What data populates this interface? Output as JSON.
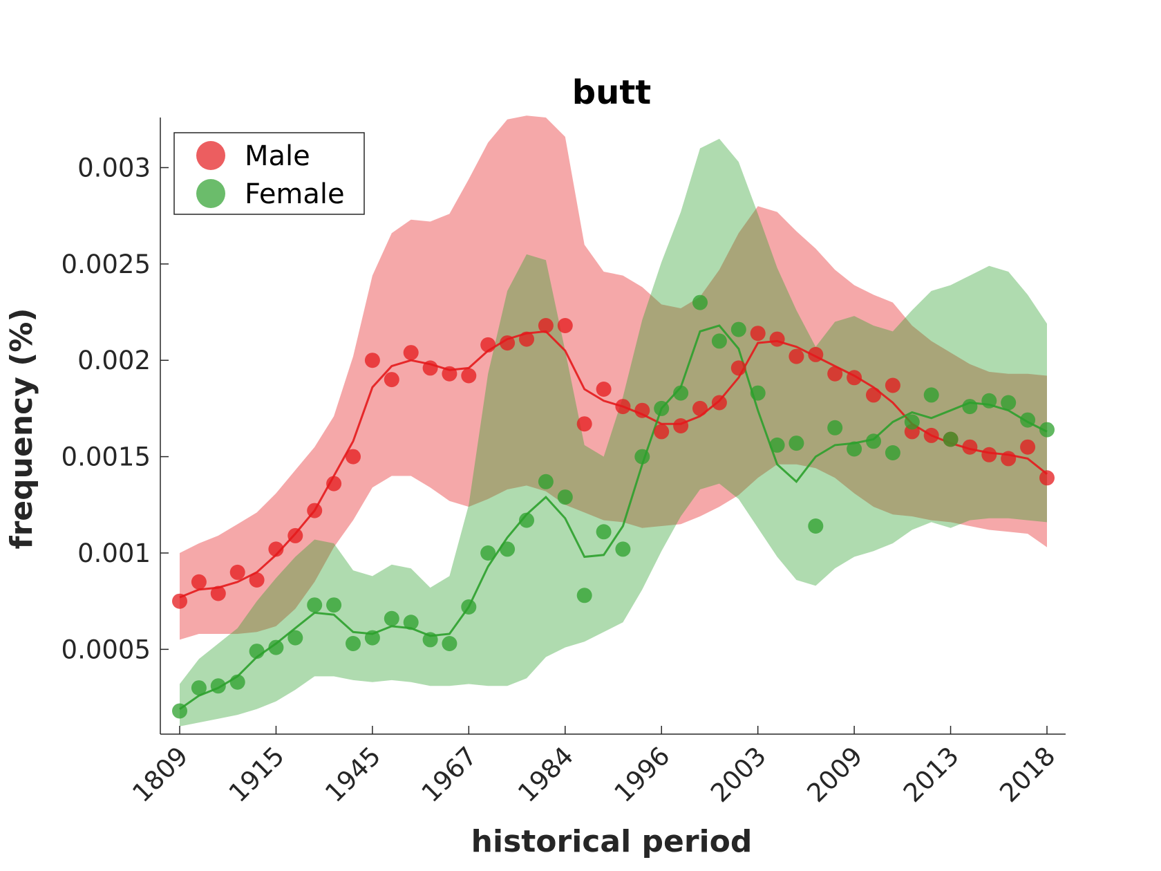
{
  "chart_data": {
    "type": "line",
    "title": "butt",
    "xlabel": "historical period",
    "ylabel": "frequency (%)",
    "x_tick_labels": [
      "1809",
      "1915",
      "1945",
      "1967",
      "1984",
      "1996",
      "2003",
      "2009",
      "2013",
      "2018"
    ],
    "y_ticks": [
      0.0005,
      0.001,
      0.0015,
      0.002,
      0.0025,
      0.003
    ],
    "y_tick_labels": [
      "0.0005",
      "0.001",
      "0.0015",
      "0.002",
      "0.0025",
      "0.003"
    ],
    "ylim": [
      6e-05,
      0.00326
    ],
    "n_points": 46,
    "grid": false,
    "legend_position": "top-left",
    "series": [
      {
        "name": "Male",
        "color": "#e41a1c",
        "band_color": "#f0a0a2",
        "points": [
          0.00075,
          0.00085,
          0.00079,
          0.0009,
          0.00086,
          0.00102,
          0.00109,
          0.00122,
          0.00136,
          0.0015,
          0.002,
          0.0019,
          0.00204,
          0.00196,
          0.00193,
          0.00192,
          0.00208,
          0.00209,
          0.00211,
          0.00218,
          0.00218,
          0.00167,
          0.00185,
          0.00176,
          0.00174,
          0.00163,
          0.00166,
          0.00175,
          0.00178,
          0.00196,
          0.00214,
          0.00211,
          0.00202,
          0.00203,
          0.00193,
          0.00191,
          0.00182,
          0.00187,
          0.00163,
          0.00161,
          0.00159,
          0.00155,
          0.00151,
          0.00149,
          0.00155,
          0.00139
        ],
        "trend": [
          0.00077,
          0.00081,
          0.00082,
          0.00085,
          0.0009,
          0.00099,
          0.0011,
          0.00122,
          0.0014,
          0.00158,
          0.00186,
          0.00197,
          0.002,
          0.00198,
          0.00195,
          0.00196,
          0.00205,
          0.00211,
          0.00214,
          0.00215,
          0.00205,
          0.00185,
          0.00179,
          0.00176,
          0.00172,
          0.00167,
          0.00167,
          0.00171,
          0.00179,
          0.00191,
          0.00209,
          0.0021,
          0.00207,
          0.00202,
          0.00197,
          0.00192,
          0.00186,
          0.00178,
          0.00167,
          0.00161,
          0.00157,
          0.00154,
          0.00152,
          0.00151,
          0.00149,
          0.00141
        ],
        "upper": [
          0.001,
          0.00105,
          0.00109,
          0.00115,
          0.00121,
          0.00131,
          0.00143,
          0.00155,
          0.00171,
          0.00202,
          0.00244,
          0.00266,
          0.00273,
          0.00272,
          0.00276,
          0.00294,
          0.00313,
          0.00325,
          0.00327,
          0.00326,
          0.00316,
          0.0026,
          0.00246,
          0.00244,
          0.00238,
          0.00229,
          0.00227,
          0.00233,
          0.00247,
          0.00266,
          0.0028,
          0.00277,
          0.00267,
          0.00258,
          0.00247,
          0.00239,
          0.00234,
          0.0023,
          0.00218,
          0.0021,
          0.00204,
          0.00198,
          0.00194,
          0.00193,
          0.00193,
          0.00192
        ],
        "lower": [
          0.00055,
          0.00058,
          0.00058,
          0.00058,
          0.00059,
          0.00062,
          0.00071,
          0.00085,
          0.00103,
          0.00117,
          0.00134,
          0.0014,
          0.0014,
          0.00134,
          0.00127,
          0.00124,
          0.00128,
          0.00133,
          0.00135,
          0.00132,
          0.00125,
          0.00121,
          0.00117,
          0.00116,
          0.00113,
          0.00114,
          0.00115,
          0.00119,
          0.00124,
          0.0013,
          0.00139,
          0.00146,
          0.00146,
          0.00144,
          0.00139,
          0.00131,
          0.00124,
          0.0012,
          0.00119,
          0.00117,
          0.00116,
          0.00114,
          0.00112,
          0.00111,
          0.0011,
          0.00103
        ]
      },
      {
        "name": "Female",
        "color": "#2ca02c",
        "band_color": "#a8d8a3",
        "points": [
          0.00018,
          0.0003,
          0.00031,
          0.00033,
          0.00049,
          0.00051,
          0.00056,
          0.00073,
          0.00073,
          0.00053,
          0.00056,
          0.00066,
          0.00064,
          0.00055,
          0.00053,
          0.00072,
          0.001,
          0.00102,
          0.00117,
          0.00137,
          0.00129,
          0.00078,
          0.00111,
          0.00102,
          0.0015,
          0.00175,
          0.00183,
          0.0023,
          0.0021,
          0.00216,
          0.00183,
          0.00156,
          0.00157,
          0.00114,
          0.00165,
          0.00154,
          0.00158,
          0.00152,
          0.00168,
          0.00182,
          0.00159,
          0.00176,
          0.00179,
          0.00178,
          0.00169,
          0.00164
        ],
        "trend": [
          0.00019,
          0.00026,
          0.0003,
          0.00036,
          0.00046,
          0.00053,
          0.00061,
          0.00069,
          0.00068,
          0.00059,
          0.00058,
          0.00062,
          0.00061,
          0.00057,
          0.00058,
          0.00072,
          0.00093,
          0.00108,
          0.0012,
          0.00129,
          0.00118,
          0.00098,
          0.00099,
          0.00114,
          0.00146,
          0.00175,
          0.00186,
          0.00215,
          0.00218,
          0.00206,
          0.00174,
          0.00146,
          0.00137,
          0.0015,
          0.00156,
          0.00157,
          0.00159,
          0.00168,
          0.00173,
          0.0017,
          0.00174,
          0.00178,
          0.00177,
          0.00174,
          0.00168,
          0.00163
        ],
        "upper": [
          0.00032,
          0.00045,
          0.00053,
          0.00061,
          0.00075,
          0.00087,
          0.00098,
          0.00107,
          0.00105,
          0.00091,
          0.00088,
          0.00094,
          0.00092,
          0.00082,
          0.00088,
          0.00125,
          0.00193,
          0.00236,
          0.00255,
          0.00252,
          0.00205,
          0.00156,
          0.0015,
          0.00181,
          0.00221,
          0.00251,
          0.00277,
          0.0031,
          0.00315,
          0.00303,
          0.00276,
          0.00248,
          0.00226,
          0.00207,
          0.0022,
          0.00223,
          0.00218,
          0.00215,
          0.00226,
          0.00236,
          0.00239,
          0.00244,
          0.00249,
          0.00246,
          0.00234,
          0.00219
        ],
        "lower": [
          0.0001,
          0.00012,
          0.00014,
          0.00016,
          0.00019,
          0.00023,
          0.00029,
          0.00036,
          0.00036,
          0.00034,
          0.00033,
          0.00034,
          0.00033,
          0.00031,
          0.00031,
          0.00032,
          0.00031,
          0.00031,
          0.00035,
          0.00046,
          0.00051,
          0.00054,
          0.00059,
          0.00064,
          0.00081,
          0.00101,
          0.00119,
          0.00133,
          0.00136,
          0.00128,
          0.00113,
          0.00098,
          0.00086,
          0.00083,
          0.00092,
          0.00098,
          0.00101,
          0.00105,
          0.00112,
          0.00116,
          0.00113,
          0.00117,
          0.00118,
          0.00118,
          0.00117,
          0.00116
        ]
      }
    ]
  }
}
